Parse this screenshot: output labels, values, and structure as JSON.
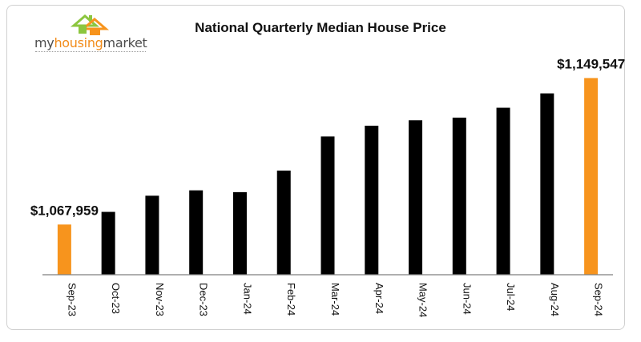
{
  "colors": {
    "bar": "#000000",
    "highlight": "#f7941d",
    "axis": "#7f7f7f"
  },
  "logo": {
    "part1": "my",
    "part2": "housing",
    "part3": "market",
    "icon": "house-icon"
  },
  "chart_data": {
    "type": "bar",
    "title": "National Quarterly Median House Price",
    "xlabel": "",
    "ylabel": "",
    "categories": [
      "Sep-23",
      "Oct-23",
      "Nov-23",
      "Dec-23",
      "Jan-24",
      "Feb-24",
      "Mar-24",
      "Apr-24",
      "May-24",
      "Jun-24",
      "Jul-24",
      "Aug-24",
      "Sep-24"
    ],
    "values": [
      1067959,
      1075000,
      1084000,
      1087000,
      1086000,
      1098000,
      1117000,
      1123000,
      1126000,
      1127500,
      1133000,
      1141000,
      1149547
    ],
    "highlighted": [
      "Sep-23",
      "Sep-24"
    ],
    "data_labels": [
      {
        "category": "Sep-23",
        "text": "$1,067,959"
      },
      {
        "category": "Sep-24",
        "text": "$1,149,547"
      }
    ],
    "ylim": [
      1040000,
      1160000
    ],
    "grid": false,
    "legend": "none"
  }
}
